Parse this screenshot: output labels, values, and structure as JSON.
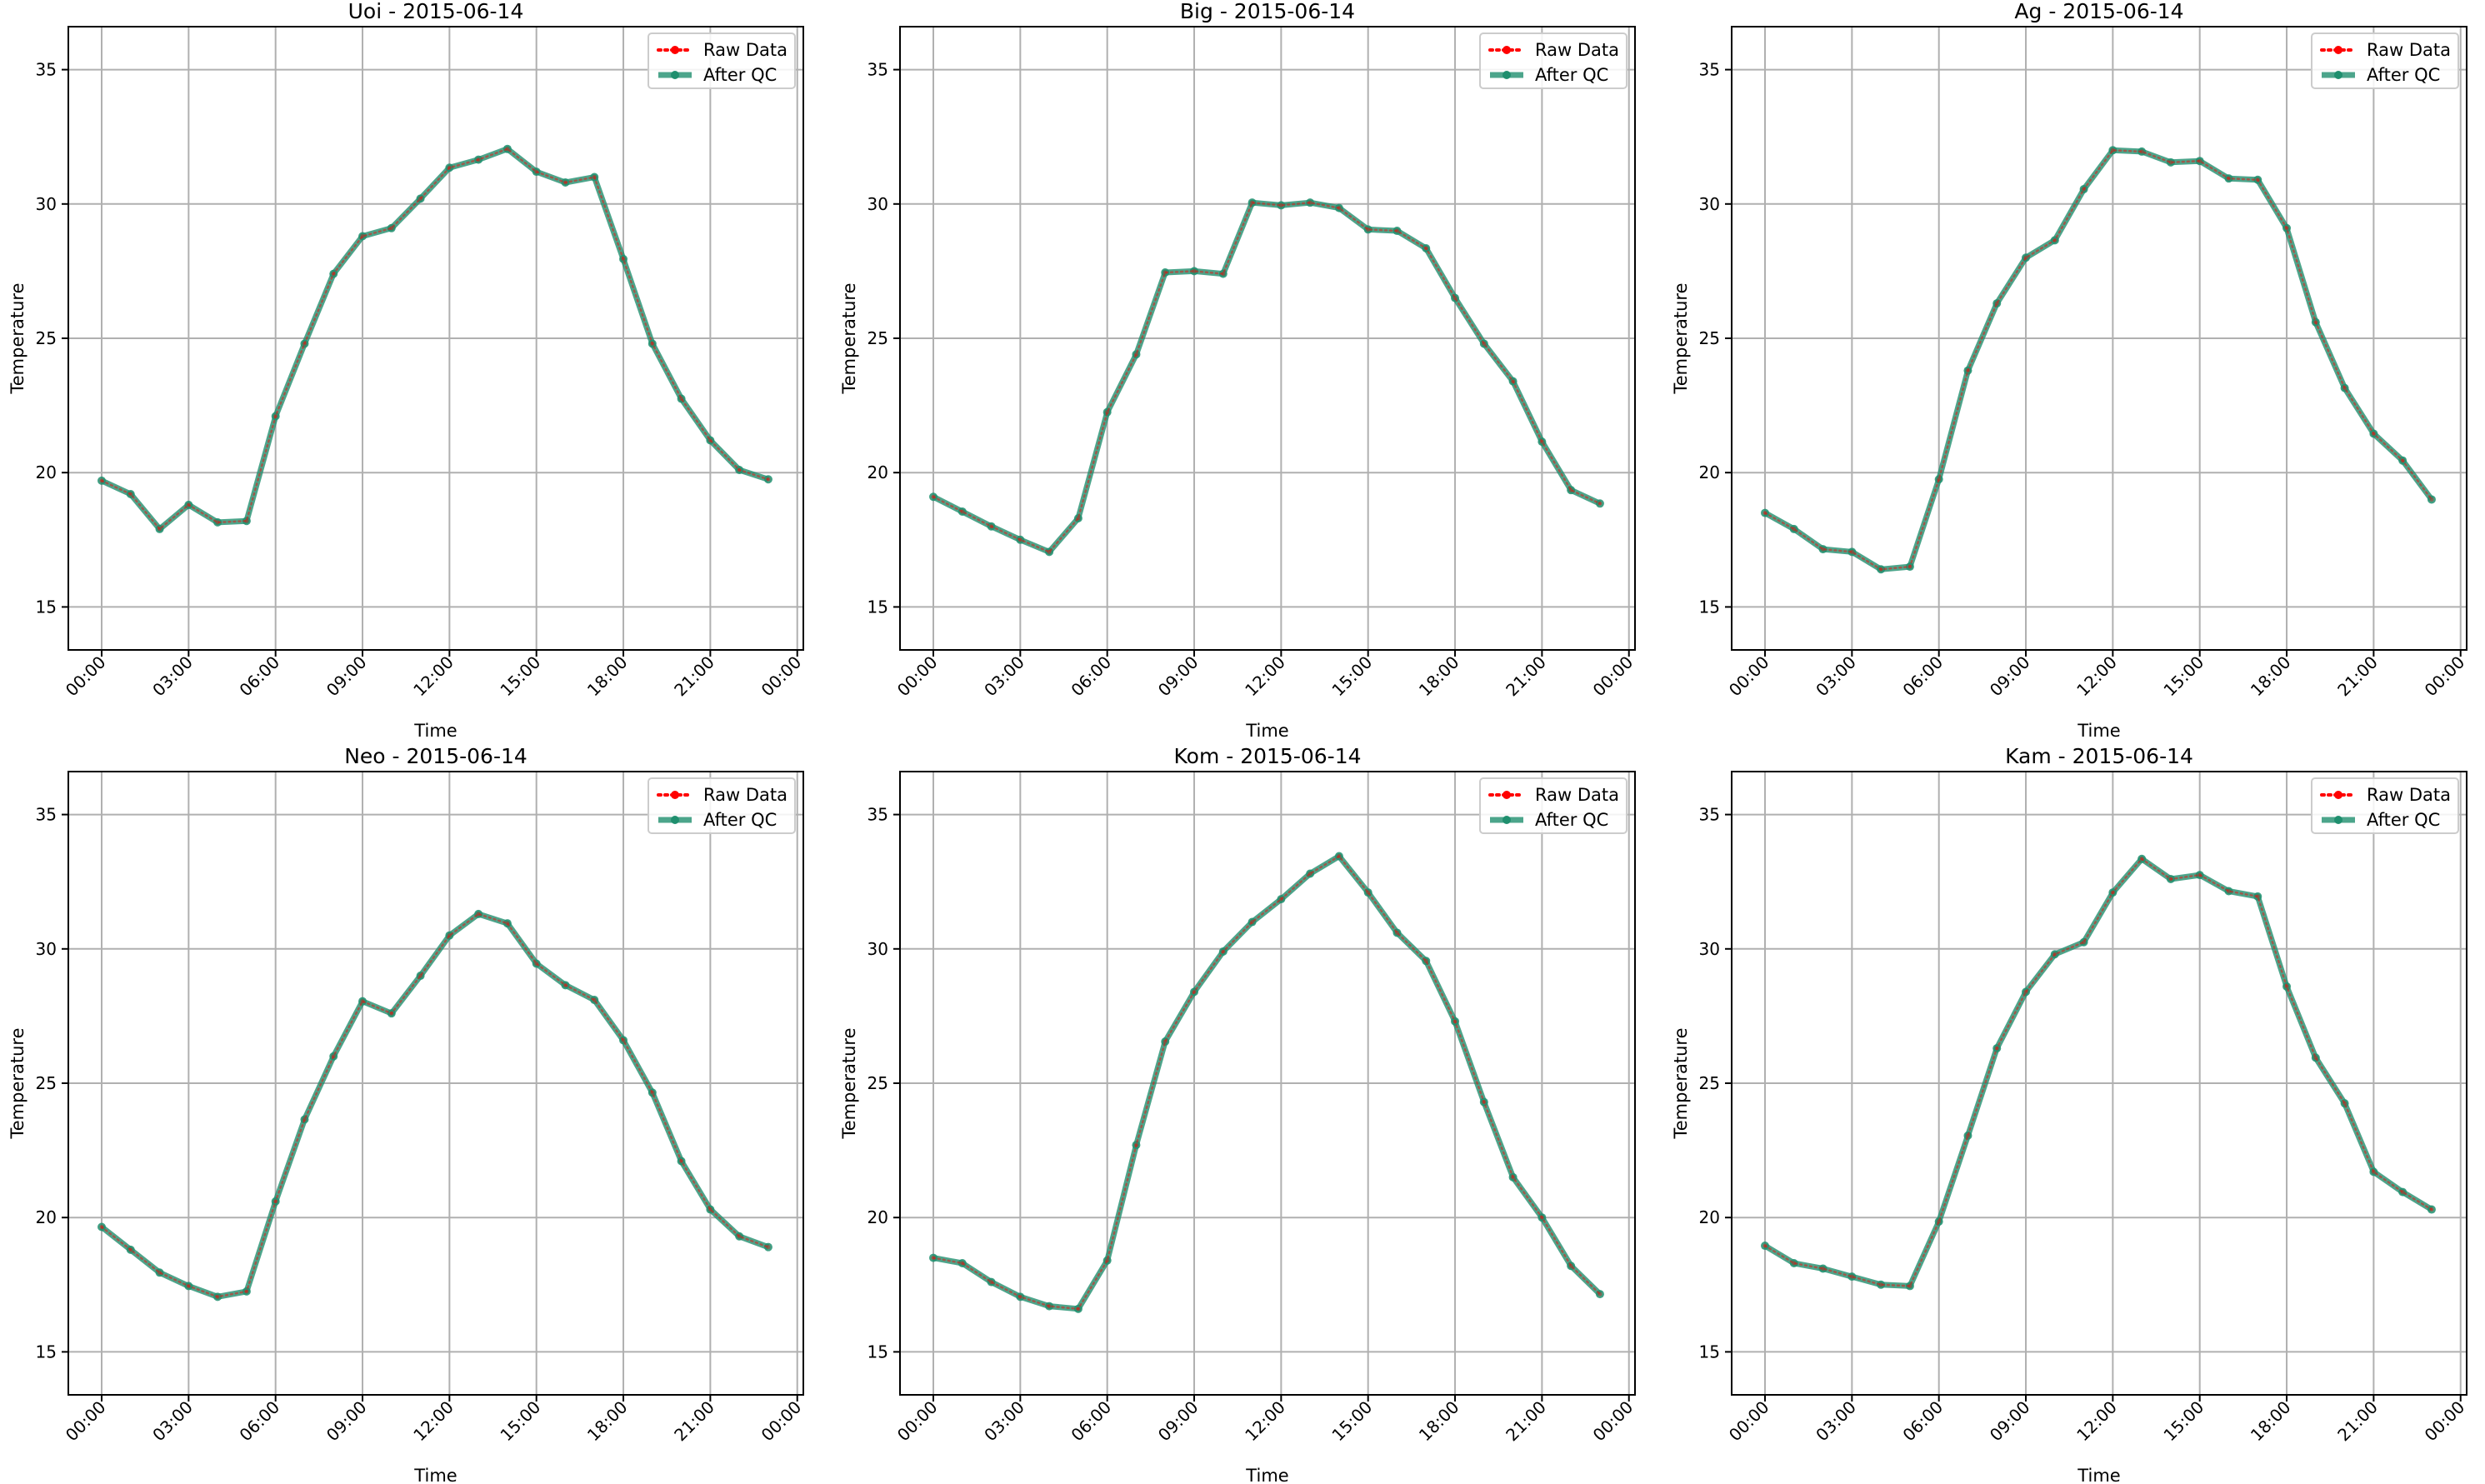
{
  "chart_data": [
    {
      "type": "line",
      "title": "Uoi - 2015-06-14",
      "xlabel": "Time",
      "ylabel": "Temperature",
      "ylim": [
        13.4,
        36.6
      ],
      "yticks": [
        15,
        20,
        25,
        30,
        35
      ],
      "x": [
        "00:00",
        "01:00",
        "02:00",
        "03:00",
        "04:00",
        "05:00",
        "06:00",
        "07:00",
        "08:00",
        "09:00",
        "10:00",
        "11:00",
        "12:00",
        "13:00",
        "14:00",
        "15:00",
        "16:00",
        "17:00",
        "18:00",
        "19:00",
        "20:00",
        "21:00",
        "22:00",
        "23:00"
      ],
      "xticks": [
        "00:00",
        "03:00",
        "06:00",
        "09:00",
        "12:00",
        "15:00",
        "18:00",
        "21:00",
        "00:00"
      ],
      "grid": true,
      "legend_position": "top-right",
      "series": [
        {
          "name": "Raw Data",
          "color": "#ff0000",
          "style": "dotted",
          "values": [
            19.7,
            19.2,
            17.9,
            18.8,
            18.15,
            18.2,
            22.1,
            24.8,
            27.4,
            28.8,
            29.1,
            30.2,
            31.35,
            31.65,
            32.05,
            31.2,
            30.8,
            31.0,
            27.95,
            24.8,
            22.75,
            21.2,
            20.1,
            19.75
          ]
        },
        {
          "name": "After QC",
          "color": "#1f8f6e",
          "style": "solid",
          "values": [
            19.7,
            19.2,
            17.9,
            18.8,
            18.15,
            18.2,
            22.1,
            24.8,
            27.4,
            28.8,
            29.1,
            30.2,
            31.35,
            31.65,
            32.05,
            31.2,
            30.8,
            31.0,
            27.95,
            24.8,
            22.75,
            21.2,
            20.1,
            19.75
          ]
        }
      ]
    },
    {
      "type": "line",
      "title": "Big - 2015-06-14",
      "xlabel": "Time",
      "ylabel": "Temperature",
      "ylim": [
        13.4,
        36.6
      ],
      "yticks": [
        15,
        20,
        25,
        30,
        35
      ],
      "x": [
        "00:00",
        "01:00",
        "02:00",
        "03:00",
        "04:00",
        "05:00",
        "06:00",
        "07:00",
        "08:00",
        "09:00",
        "10:00",
        "11:00",
        "12:00",
        "13:00",
        "14:00",
        "15:00",
        "16:00",
        "17:00",
        "18:00",
        "19:00",
        "20:00",
        "21:00",
        "22:00",
        "23:00"
      ],
      "xticks": [
        "00:00",
        "03:00",
        "06:00",
        "09:00",
        "12:00",
        "15:00",
        "18:00",
        "21:00",
        "00:00"
      ],
      "grid": true,
      "legend_position": "top-right",
      "series": [
        {
          "name": "Raw Data",
          "color": "#ff0000",
          "style": "dotted",
          "values": [
            19.1,
            18.55,
            18.0,
            17.5,
            17.05,
            18.3,
            22.25,
            24.4,
            27.45,
            27.5,
            27.4,
            30.05,
            29.95,
            30.05,
            29.85,
            29.05,
            29.0,
            28.35,
            26.5,
            24.8,
            23.4,
            21.15,
            19.35,
            18.85
          ]
        },
        {
          "name": "After QC",
          "color": "#1f8f6e",
          "style": "solid",
          "values": [
            19.1,
            18.55,
            18.0,
            17.5,
            17.05,
            18.3,
            22.25,
            24.4,
            27.45,
            27.5,
            27.4,
            30.05,
            29.95,
            30.05,
            29.85,
            29.05,
            29.0,
            28.35,
            26.5,
            24.8,
            23.4,
            21.15,
            19.35,
            18.85
          ]
        }
      ]
    },
    {
      "type": "line",
      "title": "Ag - 2015-06-14",
      "xlabel": "Time",
      "ylabel": "Temperature",
      "ylim": [
        13.4,
        36.6
      ],
      "yticks": [
        15,
        20,
        25,
        30,
        35
      ],
      "x": [
        "00:00",
        "01:00",
        "02:00",
        "03:00",
        "04:00",
        "05:00",
        "06:00",
        "07:00",
        "08:00",
        "09:00",
        "10:00",
        "11:00",
        "12:00",
        "13:00",
        "14:00",
        "15:00",
        "16:00",
        "17:00",
        "18:00",
        "19:00",
        "20:00",
        "21:00",
        "22:00",
        "23:00"
      ],
      "xticks": [
        "00:00",
        "03:00",
        "06:00",
        "09:00",
        "12:00",
        "15:00",
        "18:00",
        "21:00",
        "00:00"
      ],
      "grid": true,
      "legend_position": "top-right",
      "series": [
        {
          "name": "Raw Data",
          "color": "#ff0000",
          "style": "dotted",
          "values": [
            18.5,
            17.9,
            17.15,
            17.05,
            16.4,
            16.5,
            19.75,
            23.8,
            26.3,
            28.0,
            28.65,
            30.55,
            32.0,
            31.95,
            31.55,
            31.6,
            30.95,
            30.9,
            29.1,
            25.6,
            23.15,
            21.45,
            20.45,
            19.0
          ]
        },
        {
          "name": "After QC",
          "color": "#1f8f6e",
          "style": "solid",
          "values": [
            18.5,
            17.9,
            17.15,
            17.05,
            16.4,
            16.5,
            19.75,
            23.8,
            26.3,
            28.0,
            28.65,
            30.55,
            32.0,
            31.95,
            31.55,
            31.6,
            30.95,
            30.9,
            29.1,
            25.6,
            23.15,
            21.45,
            20.45,
            19.0
          ]
        }
      ]
    },
    {
      "type": "line",
      "title": "Neo - 2015-06-14",
      "xlabel": "Time",
      "ylabel": "Temperature",
      "ylim": [
        13.4,
        36.6
      ],
      "yticks": [
        15,
        20,
        25,
        30,
        35
      ],
      "x": [
        "00:00",
        "01:00",
        "02:00",
        "03:00",
        "04:00",
        "05:00",
        "06:00",
        "07:00",
        "08:00",
        "09:00",
        "10:00",
        "11:00",
        "12:00",
        "13:00",
        "14:00",
        "15:00",
        "16:00",
        "17:00",
        "18:00",
        "19:00",
        "20:00",
        "21:00",
        "22:00",
        "23:00"
      ],
      "xticks": [
        "00:00",
        "03:00",
        "06:00",
        "09:00",
        "12:00",
        "15:00",
        "18:00",
        "21:00",
        "00:00"
      ],
      "grid": true,
      "legend_position": "top-right",
      "series": [
        {
          "name": "Raw Data",
          "color": "#ff0000",
          "style": "dotted",
          "values": [
            19.65,
            18.8,
            17.95,
            17.45,
            17.05,
            17.25,
            20.6,
            23.65,
            26.0,
            28.05,
            27.6,
            29.0,
            30.5,
            31.3,
            30.95,
            29.45,
            28.65,
            28.1,
            26.6,
            24.65,
            22.1,
            20.3,
            19.3,
            18.9
          ]
        },
        {
          "name": "After QC",
          "color": "#1f8f6e",
          "style": "solid",
          "values": [
            19.65,
            18.8,
            17.95,
            17.45,
            17.05,
            17.25,
            20.6,
            23.65,
            26.0,
            28.05,
            27.6,
            29.0,
            30.5,
            31.3,
            30.95,
            29.45,
            28.65,
            28.1,
            26.6,
            24.65,
            22.1,
            20.3,
            19.3,
            18.9
          ]
        }
      ]
    },
    {
      "type": "line",
      "title": "Kom - 2015-06-14",
      "xlabel": "Time",
      "ylabel": "Temperature",
      "ylim": [
        13.4,
        36.6
      ],
      "yticks": [
        15,
        20,
        25,
        30,
        35
      ],
      "x": [
        "00:00",
        "01:00",
        "02:00",
        "03:00",
        "04:00",
        "05:00",
        "06:00",
        "07:00",
        "08:00",
        "09:00",
        "10:00",
        "11:00",
        "12:00",
        "13:00",
        "14:00",
        "15:00",
        "16:00",
        "17:00",
        "18:00",
        "19:00",
        "20:00",
        "21:00",
        "22:00",
        "23:00"
      ],
      "xticks": [
        "00:00",
        "03:00",
        "06:00",
        "09:00",
        "12:00",
        "15:00",
        "18:00",
        "21:00",
        "00:00"
      ],
      "grid": true,
      "legend_position": "top-right",
      "series": [
        {
          "name": "Raw Data",
          "color": "#ff0000",
          "style": "dotted",
          "values": [
            18.5,
            18.3,
            17.6,
            17.05,
            16.7,
            16.6,
            18.4,
            22.7,
            26.55,
            28.4,
            29.9,
            31.0,
            31.85,
            32.8,
            33.45,
            32.1,
            30.6,
            29.55,
            27.3,
            24.3,
            21.5,
            20.0,
            18.2,
            17.15
          ]
        },
        {
          "name": "After QC",
          "color": "#1f8f6e",
          "style": "solid",
          "values": [
            18.5,
            18.3,
            17.6,
            17.05,
            16.7,
            16.6,
            18.4,
            22.7,
            26.55,
            28.4,
            29.9,
            31.0,
            31.85,
            32.8,
            33.45,
            32.1,
            30.6,
            29.55,
            27.3,
            24.3,
            21.5,
            20.0,
            18.2,
            17.15
          ]
        }
      ]
    },
    {
      "type": "line",
      "title": "Kam - 2015-06-14",
      "xlabel": "Time",
      "ylabel": "Temperature",
      "ylim": [
        13.4,
        36.6
      ],
      "yticks": [
        15,
        20,
        25,
        30,
        35
      ],
      "x": [
        "00:00",
        "01:00",
        "02:00",
        "03:00",
        "04:00",
        "05:00",
        "06:00",
        "07:00",
        "08:00",
        "09:00",
        "10:00",
        "11:00",
        "12:00",
        "13:00",
        "14:00",
        "15:00",
        "16:00",
        "17:00",
        "18:00",
        "19:00",
        "20:00",
        "21:00",
        "22:00",
        "23:00"
      ],
      "xticks": [
        "00:00",
        "03:00",
        "06:00",
        "09:00",
        "12:00",
        "15:00",
        "18:00",
        "21:00",
        "00:00"
      ],
      "grid": true,
      "legend_position": "top-right",
      "series": [
        {
          "name": "Raw Data",
          "color": "#ff0000",
          "style": "dotted",
          "values": [
            18.95,
            18.3,
            18.1,
            17.8,
            17.5,
            17.45,
            19.85,
            23.05,
            26.3,
            28.4,
            29.8,
            30.25,
            32.1,
            33.35,
            32.6,
            32.75,
            32.15,
            31.95,
            28.6,
            25.95,
            24.25,
            21.7,
            20.95,
            20.3
          ]
        },
        {
          "name": "After QC",
          "color": "#1f8f6e",
          "style": "solid",
          "values": [
            18.95,
            18.3,
            18.1,
            17.8,
            17.5,
            17.45,
            19.85,
            23.05,
            26.3,
            28.4,
            29.8,
            30.25,
            32.1,
            33.35,
            32.6,
            32.75,
            32.15,
            31.95,
            28.6,
            25.95,
            24.25,
            21.7,
            20.95,
            20.3
          ]
        }
      ]
    }
  ]
}
